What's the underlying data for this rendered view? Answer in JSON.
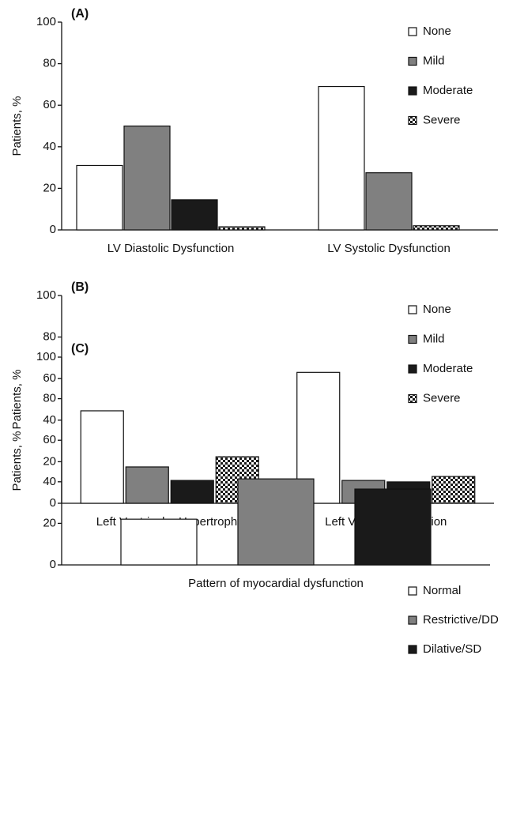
{
  "chart_data": [
    {
      "type": "bar",
      "panel_label": "(A)",
      "ylabel": "Patients, %",
      "categories": [
        "LV Diastolic Dysfunction",
        "LV Systolic Dysfunction"
      ],
      "series": [
        {
          "name": "None",
          "color": "#ffffff",
          "values": [
            31,
            69
          ]
        },
        {
          "name": "Mild",
          "color": "#808080",
          "values": [
            50,
            27.5
          ]
        },
        {
          "name": "Moderate",
          "color": "#1a1a1a",
          "values": [
            14.5,
            null
          ]
        },
        {
          "name": "Severe",
          "color": "#1a1a1a",
          "pattern": "checker",
          "values": [
            1.5,
            2
          ]
        }
      ],
      "ylim": [
        0,
        100
      ],
      "yticks": [
        0,
        20,
        40,
        60,
        80,
        100
      ],
      "legend": "upper right"
    },
    {
      "type": "bar",
      "panel_label": "(B)",
      "ylabel": "Patients, %",
      "categories": [
        "Left Ventricular Hypertrophy",
        "Left Ventricular Dilation"
      ],
      "series": [
        {
          "name": "None",
          "color": "#ffffff",
          "values": [
            44.5,
            63
          ]
        },
        {
          "name": "Mild",
          "color": "#808080",
          "values": [
            17.5,
            11
          ]
        },
        {
          "name": "Moderate",
          "color": "#1a1a1a",
          "values": [
            11,
            10.3
          ]
        },
        {
          "name": "Severe",
          "color": "#1a1a1a",
          "pattern": "checker",
          "values": [
            22.4,
            12.9
          ]
        }
      ],
      "ylim": [
        0,
        100
      ],
      "yticks": [
        0,
        20,
        40,
        60,
        80,
        100
      ],
      "legend": "upper right"
    },
    {
      "type": "bar",
      "panel_label": "(C)",
      "ylabel": "Patients, %",
      "categories": [
        "Pattern of myocardial dysfunction"
      ],
      "series": [
        {
          "name": "Normal",
          "color": "#ffffff",
          "values": [
            22
          ]
        },
        {
          "name": "Restrictive/DD",
          "color": "#808080",
          "values": [
            41.4
          ]
        },
        {
          "name": "Dilative/SD",
          "color": "#1a1a1a",
          "values": [
            36.5
          ]
        }
      ],
      "ylim": [
        0,
        100
      ],
      "yticks": [
        0,
        20,
        40,
        60,
        80,
        100
      ],
      "legend": "upper right"
    }
  ]
}
